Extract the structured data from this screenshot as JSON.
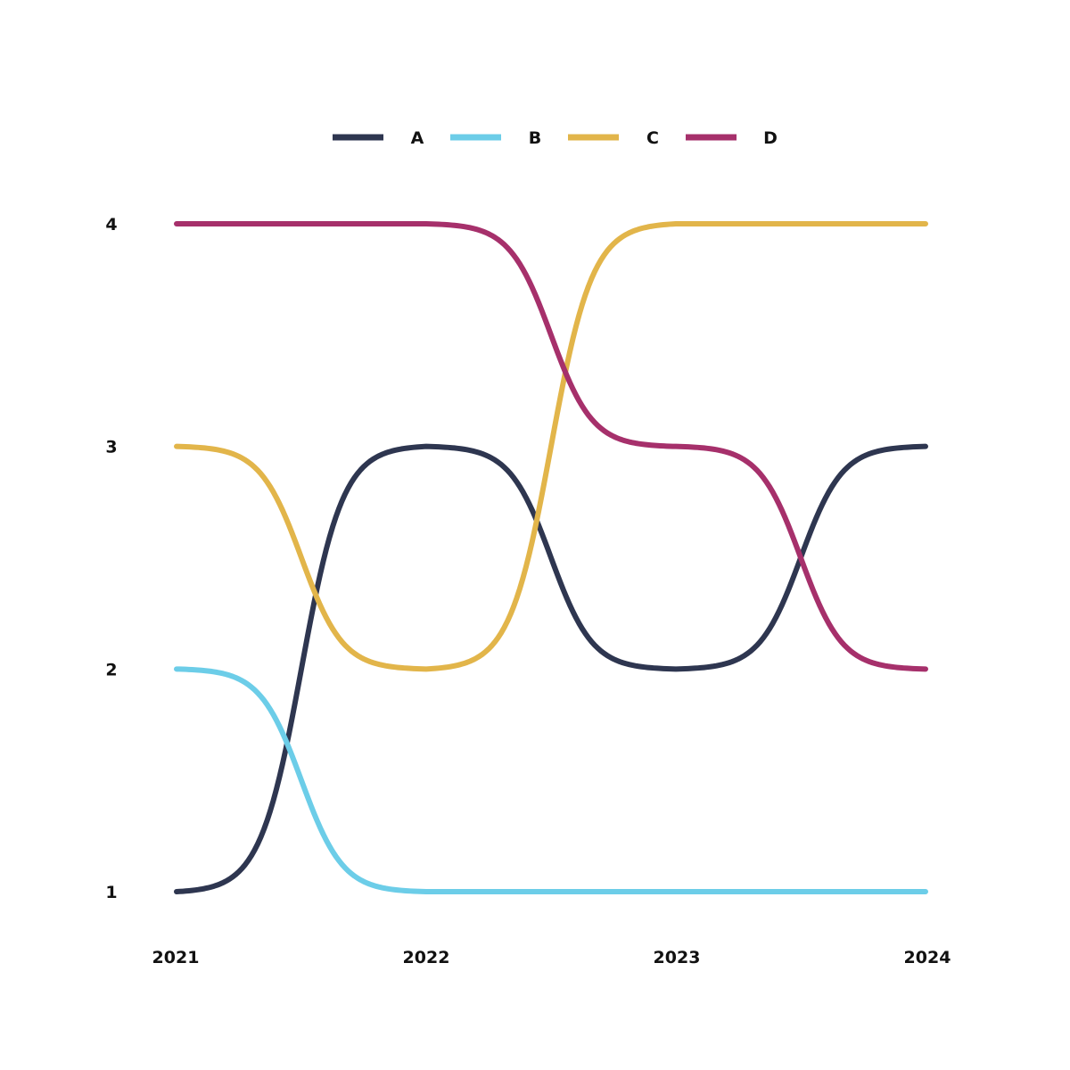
{
  "chart_data": {
    "type": "line",
    "subtype": "bump",
    "x": [
      "2021",
      "2022",
      "2023",
      "2024"
    ],
    "ylim": [
      1,
      4
    ],
    "y_ticks": [
      "1",
      "2",
      "3",
      "4"
    ],
    "grid": false,
    "legend_position": "top-center",
    "series": [
      {
        "name": "A",
        "color": "#2e3650",
        "values": [
          1,
          3,
          2,
          3
        ]
      },
      {
        "name": "B",
        "color": "#6ccde8",
        "values": [
          2,
          1,
          1,
          1
        ]
      },
      {
        "name": "C",
        "color": "#e2b54a",
        "values": [
          3,
          2,
          4,
          4
        ]
      },
      {
        "name": "D",
        "color": "#a6306b",
        "values": [
          4,
          4,
          3,
          2
        ]
      }
    ]
  }
}
